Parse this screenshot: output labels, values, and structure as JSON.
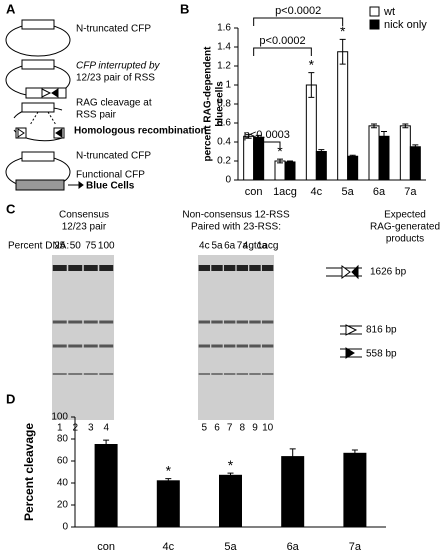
{
  "panel_a": {
    "label": "A",
    "texts": [
      "N-truncated CFP",
      "CFP interrupted by",
      "12/23 pair of RSS",
      "RAG cleavage at",
      "RSS pair",
      "Homologous recombination",
      "N-truncated CFP",
      "Functional CFP",
      "Blue Cells"
    ]
  },
  "panel_c": {
    "label": "C",
    "left_title": [
      "Consensus",
      "12/23 pair"
    ],
    "percent_label": "Percent DNA:",
    "percent_values": [
      25,
      50,
      75,
      100
    ],
    "right_title": [
      "Non-consensus 12-RSS",
      "Paired with 23-RSS:"
    ],
    "right_lanes": [
      "4c",
      "5a",
      "6a",
      "7a",
      "4gtca",
      "1acg"
    ],
    "products_title": [
      "Expected",
      "RAG-generated",
      "products"
    ],
    "sizes": [
      "1626 bp",
      "816 bp",
      "558 bp"
    ],
    "lane_numbers": [
      "1",
      "2",
      "3",
      "4",
      "5",
      "6",
      "7",
      "8",
      "9",
      "10"
    ]
  },
  "chart_data": [
    {
      "type": "bar",
      "panel": "B",
      "ylabel": [
        "percent RAG-dependent",
        "blue cells"
      ],
      "categories": [
        "con",
        "1acg",
        "4c",
        "5a",
        "6a",
        "7a"
      ],
      "series": [
        {
          "name": "wt",
          "color": "#ffffff",
          "values": [
            0.46,
            0.2,
            1.0,
            1.35,
            0.57,
            0.57
          ],
          "errors": [
            0.02,
            0.02,
            0.13,
            0.13,
            0.02,
            0.02
          ]
        },
        {
          "name": "nick only",
          "color": "#000000",
          "values": [
            0.45,
            0.19,
            0.3,
            0.25,
            0.46,
            0.35
          ],
          "errors": [
            0.02,
            0.01,
            0.02,
            0.01,
            0.05,
            0.02
          ]
        }
      ],
      "ylim": [
        0,
        1.6
      ],
      "yticks": [
        0,
        0.2,
        0.4,
        0.6,
        0.8,
        1,
        1.2,
        1.4,
        1.6
      ],
      "legend": "top-right",
      "brackets": [
        {
          "text": "p<0.0003",
          "from": "con",
          "to": "1acg"
        },
        {
          "text": "p<0.0002",
          "from": "con",
          "to": "4c"
        },
        {
          "text": "p<0.0002",
          "from": "con",
          "to": "5a"
        }
      ],
      "markers": [
        {
          "category": "1acg",
          "text": "*"
        },
        {
          "category": "4c",
          "text": "*"
        },
        {
          "category": "5a",
          "text": "*"
        }
      ]
    },
    {
      "type": "bar",
      "panel": "D",
      "ylabel": "Percent cleavage",
      "categories": [
        "con",
        "4c",
        "5a",
        "6a",
        "7a"
      ],
      "series": [
        {
          "color": "#000000",
          "values": [
            75,
            42,
            47,
            64,
            67
          ],
          "errors": [
            4,
            2,
            2,
            7,
            3
          ]
        }
      ],
      "ylim": [
        0,
        100
      ],
      "yticks": [
        0,
        20,
        40,
        60,
        80,
        100
      ],
      "markers": [
        {
          "category": "4c",
          "text": "*"
        },
        {
          "category": "5a",
          "text": "*"
        }
      ]
    }
  ]
}
